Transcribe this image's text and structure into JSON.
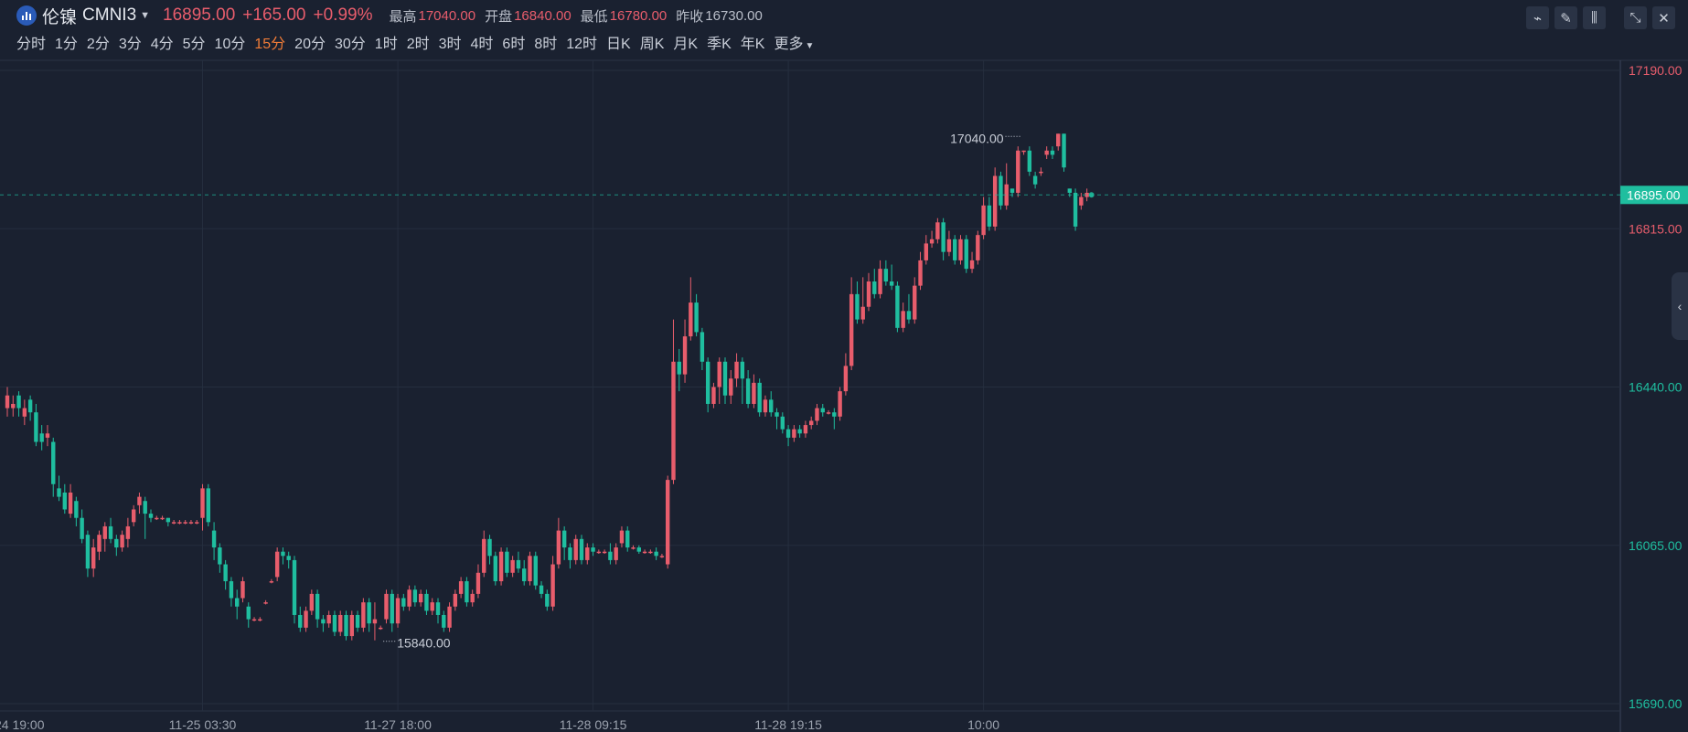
{
  "header": {
    "name": "伦镍",
    "code": "CMNI3",
    "last": "16895.00",
    "change": "+165.00",
    "change_pct": "+0.99%",
    "high_label": "最高",
    "high": "17040.00",
    "open_label": "开盘",
    "open": "16840.00",
    "low_label": "最低",
    "low": "16780.00",
    "prev_label": "昨收",
    "prev": "16730.00"
  },
  "timeframes": [
    "分时",
    "1分",
    "2分",
    "3分",
    "4分",
    "5分",
    "10分",
    "15分",
    "20分",
    "30分",
    "1时",
    "2时",
    "3时",
    "4时",
    "6时",
    "8时",
    "12时",
    "日K",
    "周K",
    "月K",
    "季K",
    "年K"
  ],
  "timeframe_active_index": 7,
  "more_label": "更多",
  "colors": {
    "up": "#e85d6c",
    "down": "#1fbe9f",
    "background": "#1a2130",
    "grid": "#252e3e",
    "active_timeframe": "#f07c38"
  },
  "icons": [
    "line-tool-icon",
    "pen-icon",
    "candle-settings-icon",
    "collapse-icon",
    "close-icon"
  ],
  "chart_data": {
    "type": "candlestick",
    "ylim": [
      15690,
      17190
    ],
    "y_ticks": [
      {
        "value": 17190,
        "label": "17190.00"
      },
      {
        "value": 16815,
        "label": "16815.00"
      },
      {
        "value": 16440,
        "label": "16440.00"
      },
      {
        "value": 16065,
        "label": "16065.00"
      },
      {
        "value": 15690,
        "label": "15690.00"
      }
    ],
    "x_ticks": [
      {
        "index": 0,
        "label": "24 19:00"
      },
      {
        "index": 34,
        "label": "11-25 03:30"
      },
      {
        "index": 68,
        "label": "11-27 18:00"
      },
      {
        "index": 102,
        "label": "11-28 09:15"
      },
      {
        "index": 136,
        "label": "11-28 19:15"
      },
      {
        "index": 170,
        "label": "10:00"
      }
    ],
    "last_price": 16895,
    "last_price_label": "16895.00",
    "max_label": {
      "index": 177,
      "value": 17040,
      "label": "17040.00"
    },
    "min_label": {
      "index": 65,
      "value": 15840,
      "label": "15840.00"
    },
    "candles": [
      [
        16390,
        16420,
        16370,
        16440
      ],
      [
        16390,
        16400,
        16370,
        16420
      ],
      [
        16420,
        16390,
        16370,
        16430
      ],
      [
        16370,
        16390,
        16350,
        16410
      ],
      [
        16410,
        16380,
        16360,
        16420
      ],
      [
        16380,
        16310,
        16300,
        16400
      ],
      [
        16330,
        16310,
        16290,
        16350
      ],
      [
        16320,
        16330,
        16300,
        16350
      ],
      [
        16310,
        16210,
        16180,
        16320
      ],
      [
        16200,
        16180,
        16170,
        16230
      ],
      [
        16190,
        16150,
        16140,
        16210
      ],
      [
        16140,
        16190,
        16130,
        16210
      ],
      [
        16170,
        16130,
        16110,
        16180
      ],
      [
        16130,
        16080,
        16070,
        16150
      ],
      [
        16090,
        16010,
        15990,
        16100
      ],
      [
        16010,
        16060,
        15990,
        16080
      ],
      [
        16050,
        16090,
        16030,
        16100
      ],
      [
        16080,
        16110,
        16050,
        16120
      ],
      [
        16110,
        16080,
        16070,
        16130
      ],
      [
        16080,
        16060,
        16040,
        16090
      ],
      [
        16060,
        16090,
        16050,
        16100
      ],
      [
        16080,
        16110,
        16060,
        16130
      ],
      [
        16120,
        16150,
        16110,
        16160
      ],
      [
        16160,
        16180,
        16140,
        16190
      ],
      [
        16170,
        16140,
        16080,
        16180
      ],
      [
        16140,
        16130,
        16120,
        16150
      ],
      [
        16130,
        16130,
        16125,
        16135
      ],
      [
        16130,
        16130,
        16125,
        16135
      ],
      [
        16130,
        16120,
        16110,
        16130
      ],
      [
        16120,
        16120,
        16115,
        16125
      ],
      [
        16120,
        16120,
        16115,
        16125
      ],
      [
        16120,
        16120,
        16115,
        16125
      ],
      [
        16120,
        16120,
        16115,
        16125
      ],
      [
        16120,
        16120,
        16115,
        16125
      ],
      [
        16130,
        16200,
        16100,
        16210
      ],
      [
        16200,
        16120,
        16110,
        16210
      ],
      [
        16100,
        16060,
        16030,
        16120
      ],
      [
        16060,
        16020,
        16000,
        16070
      ],
      [
        16020,
        15980,
        15960,
        16030
      ],
      [
        15980,
        15940,
        15920,
        15990
      ],
      [
        15940,
        15920,
        15890,
        15960
      ],
      [
        15940,
        15980,
        15930,
        15990
      ],
      [
        15920,
        15890,
        15870,
        15930
      ],
      [
        15890,
        15890,
        15885,
        15895
      ],
      [
        15890,
        15890,
        15885,
        15895
      ],
      [
        15930,
        15930,
        15925,
        15935
      ],
      [
        15980,
        15980,
        15975,
        15985
      ],
      [
        15990,
        16050,
        15980,
        16060
      ],
      [
        16050,
        16040,
        16020,
        16060
      ],
      [
        16040,
        16030,
        16010,
        16050
      ],
      [
        16030,
        15900,
        15880,
        16040
      ],
      [
        15900,
        15870,
        15860,
        15920
      ],
      [
        15870,
        15910,
        15860,
        15920
      ],
      [
        15910,
        15950,
        15900,
        15960
      ],
      [
        15950,
        15890,
        15870,
        15960
      ],
      [
        15890,
        15880,
        15860,
        15900
      ],
      [
        15880,
        15900,
        15870,
        15910
      ],
      [
        15900,
        15860,
        15850,
        15910
      ],
      [
        15860,
        15900,
        15850,
        15910
      ],
      [
        15900,
        15850,
        15840,
        15910
      ],
      [
        15850,
        15900,
        15840,
        15910
      ],
      [
        15900,
        15870,
        15860,
        15910
      ],
      [
        15870,
        15930,
        15860,
        15940
      ],
      [
        15930,
        15880,
        15860,
        15940
      ],
      [
        15880,
        15890,
        15840,
        15930
      ],
      [
        15870,
        15870,
        15865,
        15875
      ],
      [
        15890,
        15950,
        15880,
        15960
      ],
      [
        15950,
        15880,
        15860,
        15960
      ],
      [
        15880,
        15940,
        15870,
        15950
      ],
      [
        15940,
        15920,
        15910,
        15950
      ],
      [
        15920,
        15960,
        15910,
        15970
      ],
      [
        15960,
        15930,
        15920,
        15970
      ],
      [
        15930,
        15950,
        15920,
        15960
      ],
      [
        15950,
        15910,
        15900,
        15960
      ],
      [
        15910,
        15930,
        15900,
        15940
      ],
      [
        15930,
        15900,
        15880,
        15940
      ],
      [
        15900,
        15870,
        15860,
        15910
      ],
      [
        15870,
        15920,
        15860,
        15930
      ],
      [
        15920,
        15950,
        15910,
        15960
      ],
      [
        15950,
        15980,
        15940,
        15990
      ],
      [
        15980,
        15930,
        15920,
        15990
      ],
      [
        15930,
        15950,
        15920,
        15960
      ],
      [
        15950,
        16000,
        15940,
        16020
      ],
      [
        16000,
        16080,
        15990,
        16100
      ],
      [
        16080,
        16040,
        16020,
        16090
      ],
      [
        16040,
        15980,
        15970,
        16050
      ],
      [
        15980,
        16050,
        15970,
        16060
      ],
      [
        16050,
        16000,
        15990,
        16060
      ],
      [
        16000,
        16030,
        15990,
        16040
      ],
      [
        16030,
        16010,
        16000,
        16050
      ],
      [
        16010,
        15980,
        15970,
        16030
      ],
      [
        15980,
        16040,
        15970,
        16050
      ],
      [
        16040,
        15970,
        15960,
        16050
      ],
      [
        15970,
        15950,
        15940,
        15980
      ],
      [
        15950,
        15920,
        15910,
        15960
      ],
      [
        15920,
        16020,
        15910,
        16040
      ],
      [
        16020,
        16100,
        16010,
        16130
      ],
      [
        16100,
        16060,
        16030,
        16110
      ],
      [
        16060,
        16030,
        16010,
        16070
      ],
      [
        16030,
        16080,
        16020,
        16090
      ],
      [
        16080,
        16030,
        16020,
        16090
      ],
      [
        16030,
        16060,
        16020,
        16070
      ],
      [
        16060,
        16050,
        16040,
        16070
      ],
      [
        16050,
        16050,
        16045,
        16055
      ],
      [
        16050,
        16050,
        16045,
        16055
      ],
      [
        16050,
        16030,
        16020,
        16070
      ],
      [
        16030,
        16060,
        16020,
        16070
      ],
      [
        16070,
        16100,
        16060,
        16110
      ],
      [
        16100,
        16060,
        16050,
        16110
      ],
      [
        16060,
        16060,
        16055,
        16065
      ],
      [
        16060,
        16050,
        16045,
        16065
      ],
      [
        16050,
        16050,
        16045,
        16055
      ],
      [
        16050,
        16050,
        16045,
        16055
      ],
      [
        16050,
        16040,
        16030,
        16060
      ],
      [
        16040,
        16040,
        16035,
        16045
      ],
      [
        16020,
        16220,
        16010,
        16230
      ],
      [
        16220,
        16500,
        16210,
        16600
      ],
      [
        16500,
        16470,
        16430,
        16530
      ],
      [
        16470,
        16560,
        16450,
        16600
      ],
      [
        16560,
        16640,
        16550,
        16700
      ],
      [
        16640,
        16570,
        16560,
        16660
      ],
      [
        16570,
        16500,
        16480,
        16580
      ],
      [
        16500,
        16400,
        16380,
        16510
      ],
      [
        16400,
        16440,
        16390,
        16450
      ],
      [
        16440,
        16500,
        16400,
        16510
      ],
      [
        16500,
        16420,
        16400,
        16510
      ],
      [
        16420,
        16460,
        16400,
        16480
      ],
      [
        16460,
        16500,
        16440,
        16520
      ],
      [
        16500,
        16460,
        16400,
        16510
      ],
      [
        16460,
        16400,
        16390,
        16480
      ],
      [
        16400,
        16450,
        16390,
        16470
      ],
      [
        16450,
        16380,
        16370,
        16460
      ],
      [
        16380,
        16410,
        16370,
        16420
      ],
      [
        16410,
        16380,
        16370,
        16430
      ],
      [
        16380,
        16370,
        16340,
        16390
      ],
      [
        16370,
        16340,
        16330,
        16380
      ],
      [
        16340,
        16320,
        16300,
        16350
      ],
      [
        16320,
        16340,
        16310,
        16350
      ],
      [
        16340,
        16330,
        16320,
        16350
      ],
      [
        16330,
        16350,
        16320,
        16360
      ],
      [
        16350,
        16360,
        16340,
        16370
      ],
      [
        16360,
        16390,
        16350,
        16400
      ],
      [
        16390,
        16380,
        16370,
        16400
      ],
      [
        16380,
        16380,
        16375,
        16385
      ],
      [
        16380,
        16370,
        16340,
        16390
      ],
      [
        16370,
        16430,
        16360,
        16440
      ],
      [
        16430,
        16490,
        16420,
        16520
      ],
      [
        16490,
        16660,
        16480,
        16700
      ],
      [
        16660,
        16600,
        16590,
        16690
      ],
      [
        16600,
        16630,
        16590,
        16700
      ],
      [
        16630,
        16690,
        16620,
        16710
      ],
      [
        16690,
        16660,
        16650,
        16720
      ],
      [
        16660,
        16720,
        16650,
        16740
      ],
      [
        16720,
        16690,
        16680,
        16740
      ],
      [
        16690,
        16680,
        16670,
        16730
      ],
      [
        16680,
        16580,
        16570,
        16690
      ],
      [
        16580,
        16620,
        16570,
        16640
      ],
      [
        16620,
        16600,
        16590,
        16660
      ],
      [
        16600,
        16680,
        16590,
        16700
      ],
      [
        16680,
        16740,
        16670,
        16760
      ],
      [
        16740,
        16780,
        16730,
        16800
      ],
      [
        16780,
        16790,
        16770,
        16810
      ],
      [
        16790,
        16830,
        16780,
        16840
      ],
      [
        16830,
        16760,
        16740,
        16840
      ],
      [
        16760,
        16790,
        16750,
        16810
      ],
      [
        16790,
        16740,
        16730,
        16800
      ],
      [
        16740,
        16790,
        16730,
        16800
      ],
      [
        16790,
        16720,
        16710,
        16800
      ],
      [
        16720,
        16740,
        16710,
        16760
      ],
      [
        16740,
        16800,
        16730,
        16810
      ],
      [
        16800,
        16870,
        16790,
        16890
      ],
      [
        16870,
        16820,
        16810,
        16890
      ],
      [
        16820,
        16940,
        16810,
        16960
      ],
      [
        16940,
        16870,
        16860,
        16950
      ],
      [
        16870,
        16920,
        16860,
        16970
      ],
      [
        16910,
        16900,
        16890,
        16910
      ],
      [
        16900,
        17000,
        16890,
        17010
      ],
      [
        17000,
        17000,
        16990,
        17000
      ],
      [
        17000,
        16950,
        16940,
        17010
      ],
      [
        16940,
        16920,
        16910,
        16950
      ],
      [
        16950,
        16950,
        16940,
        16960
      ],
      [
        16990,
        17000,
        16980,
        17010
      ],
      [
        17000,
        16990,
        16980,
        17010
      ],
      [
        17010,
        17040,
        17000,
        17040
      ],
      [
        17040,
        16960,
        16950,
        17040
      ],
      [
        16910,
        16900,
        16890,
        16910
      ],
      [
        16900,
        16820,
        16810,
        16910
      ],
      [
        16870,
        16890,
        16860,
        16900
      ],
      [
        16890,
        16900,
        16880,
        16910
      ]
    ]
  }
}
